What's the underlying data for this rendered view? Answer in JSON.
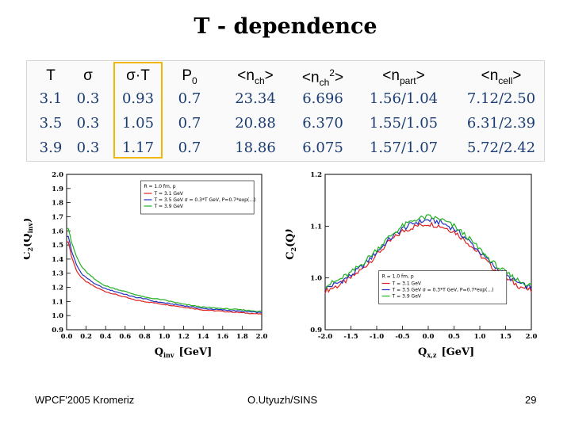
{
  "title": "T - dependence",
  "table": {
    "headers": [
      "T",
      "σ",
      "σ·T",
      "P",
      "<n",
      "<n",
      "<n",
      "<n"
    ],
    "header_subs": [
      "",
      "",
      "",
      "0",
      "ch",
      "ch",
      "part",
      "cell"
    ],
    "header_sups": [
      "",
      "",
      "",
      "",
      "",
      "2",
      "",
      ""
    ],
    "header_tails": [
      "",
      "",
      "",
      "",
      ">",
      ">",
      ">",
      ">"
    ],
    "rows": [
      [
        "3.1",
        "0.3",
        "0.93",
        "0.7",
        "23.34",
        "6.696",
        "1.56/1.04",
        "7.12/2.50"
      ],
      [
        "3.5",
        "0.3",
        "1.05",
        "0.7",
        "20.88",
        "6.370",
        "1.55/1.05",
        "6.31/2.39"
      ],
      [
        "3.9",
        "0.3",
        "1.17",
        "0.7",
        "18.86",
        "6.075",
        "1.57/1.07",
        "5.72/2.42"
      ]
    ],
    "highlight_column": 2,
    "highlight_color": "#f2b705",
    "value_color": "#1b3d73"
  },
  "chart_data": [
    {
      "type": "line",
      "title": "",
      "xlabel": "Q_inv [GeV]",
      "xlabel_main": "Q",
      "xlabel_sub": "inv",
      "xlabel_unit": "[GeV]",
      "ylabel": "C_2(Q_inv)",
      "ylabel_main": "C",
      "ylabel_sub": "2",
      "ylabel_arg": "(Q",
      "ylabel_arg_sub": "inv",
      "ylabel_close": ")",
      "xlim": [
        0,
        2.0
      ],
      "ylim": [
        0.9,
        2.0
      ],
      "xticks": [
        "0.0",
        "0.2",
        "0.4",
        "0.6",
        "0.8",
        "1.0",
        "1.2",
        "1.4",
        "1.6",
        "1.8",
        "2.0"
      ],
      "yticks": [
        "0.9",
        "1.0",
        "1.1",
        "1.2",
        "1.3",
        "1.4",
        "1.5",
        "1.6",
        "1.7",
        "1.8",
        "1.9",
        "2.0"
      ],
      "legend_position": "top-right",
      "legend_header": "R = 1.0 fm, p",
      "legend": [
        "T = 3.1 GeV",
        "T = 3.5 GeV  σ = 0.3*T GeV, P=0.7*exp(...)",
        "T = 3.9 GeV"
      ],
      "series": [
        {
          "name": "T = 3.1 GeV",
          "color": "#e02020",
          "x": [
            0.02,
            0.05,
            0.1,
            0.15,
            0.2,
            0.3,
            0.4,
            0.5,
            0.6,
            0.7,
            0.8,
            0.9,
            1.0,
            1.2,
            1.4,
            1.6,
            1.8,
            2.0
          ],
          "y": [
            1.52,
            1.42,
            1.32,
            1.27,
            1.24,
            1.2,
            1.17,
            1.15,
            1.13,
            1.11,
            1.1,
            1.09,
            1.08,
            1.06,
            1.04,
            1.03,
            1.02,
            1.01
          ]
        },
        {
          "name": "T = 3.5 GeV",
          "color": "#2030c0",
          "x": [
            0.02,
            0.05,
            0.1,
            0.15,
            0.2,
            0.3,
            0.4,
            0.5,
            0.6,
            0.7,
            0.8,
            0.9,
            1.0,
            1.2,
            1.4,
            1.6,
            1.8,
            2.0
          ],
          "y": [
            1.56,
            1.46,
            1.36,
            1.3,
            1.27,
            1.22,
            1.19,
            1.17,
            1.15,
            1.13,
            1.12,
            1.1,
            1.09,
            1.07,
            1.05,
            1.04,
            1.03,
            1.02
          ]
        },
        {
          "name": "T = 3.9 GeV",
          "color": "#20b020",
          "x": [
            0.02,
            0.05,
            0.1,
            0.15,
            0.2,
            0.3,
            0.4,
            0.5,
            0.6,
            0.7,
            0.8,
            0.9,
            1.0,
            1.2,
            1.4,
            1.6,
            1.8,
            2.0
          ],
          "y": [
            1.62,
            1.52,
            1.42,
            1.35,
            1.31,
            1.25,
            1.21,
            1.19,
            1.17,
            1.15,
            1.13,
            1.12,
            1.11,
            1.08,
            1.06,
            1.05,
            1.04,
            1.03
          ]
        }
      ]
    },
    {
      "type": "line",
      "title": "",
      "xlabel": "Q_x,z [GeV]",
      "xlabel_main": "Q",
      "xlabel_sub": "x,z",
      "xlabel_unit": "[GeV]",
      "ylabel": "C_2(Q_x,z)",
      "ylabel_main": "C",
      "ylabel_sub": "2",
      "ylabel_arg": "(Q",
      "ylabel_arg_sub": "",
      "ylabel_close": ")",
      "xlim": [
        -2.0,
        2.0
      ],
      "ylim": [
        0.9,
        1.2
      ],
      "xticks": [
        "-2.0",
        "-1.5",
        "-1.0",
        "-0.5",
        "0.0",
        "0.5",
        "1.0",
        "1.5",
        "2.0"
      ],
      "yticks": [
        "0.9",
        "1.0",
        "1.1",
        "1.2"
      ],
      "legend_position": "bottom-right",
      "legend_header": "R = 1.0 fm, p",
      "legend": [
        "T = 3.1 GeV",
        "T = 3.5 GeV  σ = 0.3*T GeV, P=0.7*exp(...)",
        "T = 3.9 GeV"
      ],
      "series": [
        {
          "name": "T = 3.1 GeV",
          "color": "#e02020",
          "x": [
            -2.0,
            -1.75,
            -1.5,
            -1.25,
            -1.0,
            -0.75,
            -0.5,
            -0.25,
            0.0,
            0.25,
            0.5,
            0.75,
            1.0,
            1.25,
            1.5,
            1.75,
            2.0
          ],
          "y": [
            0.975,
            0.985,
            1.0,
            1.02,
            1.045,
            1.07,
            1.09,
            1.1,
            1.105,
            1.1,
            1.09,
            1.07,
            1.045,
            1.02,
            1.0,
            0.985,
            0.975
          ]
        },
        {
          "name": "T = 3.5 GeV",
          "color": "#2030c0",
          "x": [
            -2.0,
            -1.75,
            -1.5,
            -1.25,
            -1.0,
            -0.75,
            -0.5,
            -0.25,
            0.0,
            0.25,
            0.5,
            0.75,
            1.0,
            1.25,
            1.5,
            1.75,
            2.0
          ],
          "y": [
            0.98,
            0.99,
            1.005,
            1.025,
            1.05,
            1.075,
            1.095,
            1.107,
            1.112,
            1.107,
            1.095,
            1.075,
            1.05,
            1.025,
            1.005,
            0.99,
            0.98
          ]
        },
        {
          "name": "T = 3.9 GeV",
          "color": "#20b020",
          "x": [
            -2.0,
            -1.75,
            -1.5,
            -1.25,
            -1.0,
            -0.75,
            -0.5,
            -0.25,
            0.0,
            0.25,
            0.5,
            0.75,
            1.0,
            1.25,
            1.5,
            1.75,
            2.0
          ],
          "y": [
            0.985,
            0.995,
            1.01,
            1.03,
            1.055,
            1.08,
            1.1,
            1.113,
            1.118,
            1.113,
            1.1,
            1.08,
            1.055,
            1.03,
            1.01,
            0.995,
            0.985
          ]
        }
      ]
    }
  ],
  "footer": {
    "left": "WPCF'2005 Kromeriz",
    "center": "O.Utyuzh/SINS",
    "right": "29"
  }
}
